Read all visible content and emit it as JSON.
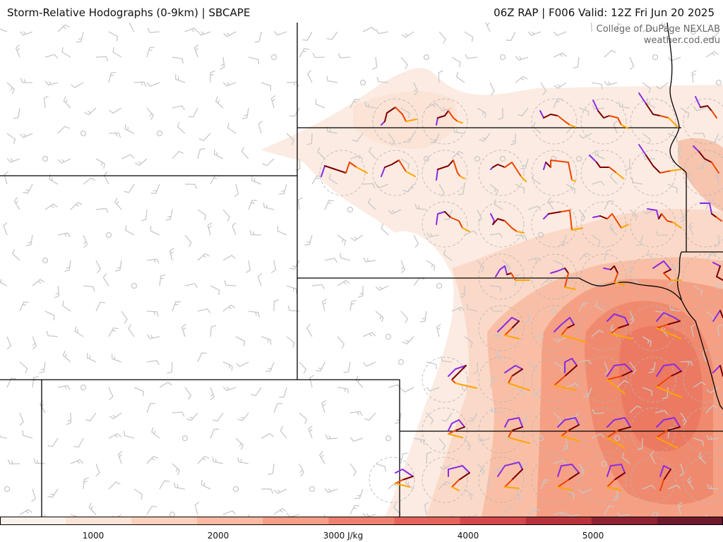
{
  "header": {
    "title": "Storm-Relative Hodographs (0-9km) | SBCAPE",
    "run_info": "06Z RAP | F006 Valid: 12Z Fri Jun 20 2025"
  },
  "credit": {
    "line1": "College of DuPage NEXLAB",
    "line2": "weather.cod.edu"
  },
  "colorbar": {
    "unit": "J/kg",
    "min": 0,
    "max": 6000,
    "ticks": [
      {
        "value": 1000,
        "label": "1000"
      },
      {
        "value": 2000,
        "label": "2000"
      },
      {
        "value": 3000,
        "label": "3000 J/kg"
      },
      {
        "value": 4000,
        "label": "4000"
      },
      {
        "value": 5000,
        "label": "5000"
      }
    ],
    "colors": [
      "#fbf1ea",
      "#fce3d5",
      "#fcd0bc",
      "#fbb9a2",
      "#f79e86",
      "#ef8070",
      "#e5635b",
      "#d4474a",
      "#b8323c",
      "#8f2234",
      "#6e1a2c"
    ]
  },
  "hodograph_colors": {
    "level_0_1km": "#7a0000",
    "level_1_3km": "#ee4500",
    "level_3_6km": "#ffa500",
    "level_6_9km": "#8a2be2"
  },
  "barb_color": "#c8c8c8",
  "border_color": "#000000"
}
